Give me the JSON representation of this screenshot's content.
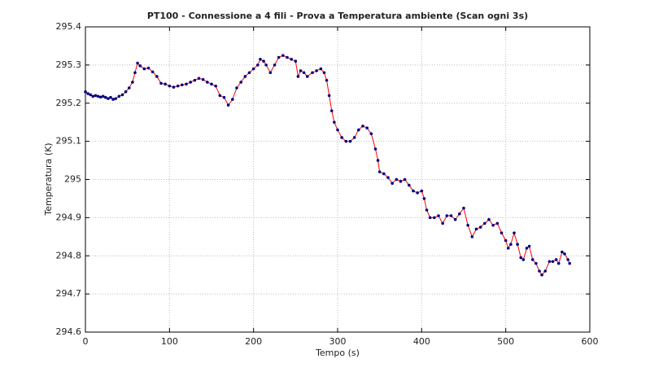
{
  "chart_data": {
    "type": "line",
    "title": "PT100 - Connessione a 4 fili - Prova a Temperatura ambiente (Scan ogni 3s)",
    "x_label": "Tempo (s)",
    "y_label": "Temperatura (K)",
    "xlim": [
      0,
      600
    ],
    "xticks": [
      0,
      100,
      200,
      300,
      400,
      500,
      600
    ],
    "ylim": [
      294.6,
      295.4
    ],
    "yticks": [
      294.6,
      294.7,
      294.8,
      294.9,
      295,
      295.1,
      295.2,
      295.3,
      295.4
    ],
    "grid": true,
    "series": [
      {
        "color": "#ff0000",
        "marker_color": "#000080",
        "x": [
          0,
          3,
          6,
          9,
          12,
          15,
          18,
          21,
          24,
          27,
          30,
          33,
          36,
          40,
          44,
          48,
          52,
          56,
          59,
          62,
          65,
          70,
          75,
          80,
          85,
          90,
          95,
          100,
          105,
          110,
          115,
          120,
          125,
          130,
          135,
          140,
          145,
          150,
          155,
          160,
          165,
          170,
          175,
          180,
          185,
          190,
          195,
          200,
          205,
          208,
          212,
          215,
          220,
          225,
          230,
          235,
          240,
          245,
          250,
          253,
          256,
          260,
          264,
          270,
          275,
          280,
          284,
          287,
          290,
          293,
          296,
          300,
          305,
          310,
          315,
          320,
          325,
          330,
          335,
          340,
          345,
          348,
          350,
          355,
          360,
          365,
          370,
          375,
          380,
          385,
          390,
          395,
          400,
          403,
          406,
          410,
          415,
          420,
          425,
          430,
          435,
          440,
          445,
          450,
          455,
          460,
          465,
          470,
          475,
          480,
          485,
          490,
          495,
          500,
          503,
          506,
          510,
          514,
          518,
          521,
          525,
          528,
          532,
          536,
          540,
          543,
          547,
          552,
          556,
          560,
          563,
          567,
          570,
          574,
          576
        ],
        "values": [
          295.23,
          295.225,
          295.222,
          295.218,
          295.22,
          295.218,
          295.216,
          295.218,
          295.215,
          295.212,
          295.215,
          295.21,
          295.212,
          295.218,
          295.222,
          295.23,
          295.24,
          295.255,
          295.28,
          295.305,
          295.298,
          295.29,
          295.292,
          295.282,
          295.27,
          295.252,
          295.25,
          295.245,
          295.242,
          295.245,
          295.248,
          295.25,
          295.255,
          295.26,
          295.265,
          295.262,
          295.255,
          295.25,
          295.245,
          295.22,
          295.215,
          295.195,
          295.21,
          295.24,
          295.255,
          295.27,
          295.28,
          295.29,
          295.3,
          295.315,
          295.31,
          295.3,
          295.28,
          295.3,
          295.32,
          295.325,
          295.32,
          295.315,
          295.31,
          295.27,
          295.285,
          295.28,
          295.27,
          295.28,
          295.285,
          295.29,
          295.28,
          295.26,
          295.22,
          295.18,
          295.15,
          295.13,
          295.11,
          295.1,
          295.1,
          295.11,
          295.13,
          295.14,
          295.135,
          295.12,
          295.08,
          295.05,
          295.02,
          295.015,
          295.005,
          294.99,
          295,
          294.995,
          295,
          294.985,
          294.97,
          294.965,
          294.97,
          294.95,
          294.92,
          294.9,
          294.9,
          294.905,
          294.885,
          294.905,
          294.905,
          294.895,
          294.91,
          294.925,
          294.88,
          294.85,
          294.87,
          294.875,
          294.885,
          294.895,
          294.88,
          294.885,
          294.86,
          294.84,
          294.82,
          294.83,
          294.86,
          294.83,
          294.795,
          294.79,
          294.82,
          294.825,
          294.79,
          294.78,
          294.76,
          294.75,
          294.76,
          294.785,
          294.785,
          294.79,
          294.78,
          294.81,
          294.805,
          294.79,
          294.78
        ]
      }
    ]
  }
}
